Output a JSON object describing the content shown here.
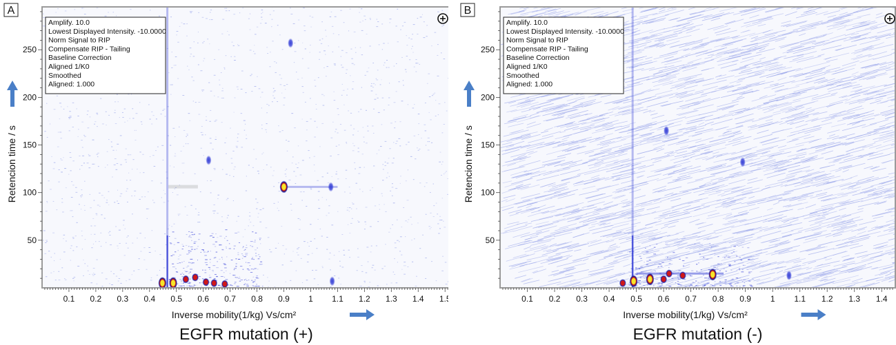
{
  "chart_data": [
    {
      "type": "heatmap",
      "panel_letter": "A",
      "info_lines": [
        "Amplify. 10.0",
        "Lowest Displayed Intensity. -10.0000",
        "Norm Signal to RIP",
        "Compensate RIP - Tailing",
        "Baseline Correction",
        "Aligned 1/K0",
        "Smoothed",
        "Aligned: 1.000"
      ],
      "xlabel": "Inverse mobility(1/kg) Vs/cm²",
      "ylabel": "Retencion time / s",
      "caption": "EGFR mutation (+)",
      "xlim": [
        0,
        1.52
      ],
      "ylim": [
        0,
        295
      ],
      "x_ticks": [
        "0.1",
        "0.2",
        "0.3",
        "0.4",
        "0.5",
        "0.6",
        "0.7",
        "0.8",
        "0.9",
        "1",
        "1.1",
        "1.2",
        "1.3",
        "1.4",
        "1.5"
      ],
      "y_ticks": [
        "50",
        "100",
        "150",
        "200",
        "250"
      ],
      "colors": {
        "background": "#f7f8fd",
        "noise": "#9aa6ea",
        "low": "#3a44d8",
        "mid": "#d01818",
        "high": "#f6e62a"
      },
      "peaks": [
        {
          "x": 0.448,
          "y": 5,
          "intensity": "high"
        },
        {
          "x": 0.488,
          "y": 5,
          "intensity": "high"
        },
        {
          "x": 0.535,
          "y": 9,
          "intensity": "mid"
        },
        {
          "x": 0.57,
          "y": 11,
          "intensity": "mid"
        },
        {
          "x": 0.61,
          "y": 6,
          "intensity": "mid"
        },
        {
          "x": 0.64,
          "y": 5,
          "intensity": "mid"
        },
        {
          "x": 0.68,
          "y": 4,
          "intensity": "mid"
        },
        {
          "x": 0.9,
          "y": 106,
          "intensity": "high"
        },
        {
          "x": 0.925,
          "y": 257,
          "intensity": "low"
        },
        {
          "x": 1.075,
          "y": 106,
          "intensity": "low"
        },
        {
          "x": 1.08,
          "y": 7,
          "intensity": "low"
        },
        {
          "x": 0.62,
          "y": 134,
          "intensity": "low"
        }
      ]
    },
    {
      "type": "heatmap",
      "panel_letter": "B",
      "info_lines": [
        "Amplify. 10.0",
        "Lowest Displayed Intensity. -10.0000",
        "Norm Signal to RIP",
        "Compensate RIP - Tailing",
        "Baseline Correction",
        "Aligned 1/K0",
        "Smoothed",
        "Aligned: 1.000"
      ],
      "xlabel": "Inverse mobility(1/kg) Vs/cm²",
      "ylabel": "Retencion time / s",
      "caption": "EGFR mutation (-)",
      "xlim": [
        0,
        1.45
      ],
      "ylim": [
        0,
        295
      ],
      "x_ticks": [
        "0.1",
        "0.2",
        "0.3",
        "0.4",
        "0.5",
        "0.6",
        "0.7",
        "0.8",
        "0.9",
        "1",
        "1.1",
        "1.2",
        "1.3",
        "1.4"
      ],
      "y_ticks": [
        "50",
        "100",
        "150",
        "200",
        "250"
      ],
      "colors": {
        "background": "#f7f8fd",
        "noise": "#9aa6ea",
        "low": "#3a44d8",
        "mid": "#d01818",
        "high": "#f6e62a"
      },
      "peaks": [
        {
          "x": 0.45,
          "y": 5,
          "intensity": "mid"
        },
        {
          "x": 0.49,
          "y": 7,
          "intensity": "high"
        },
        {
          "x": 0.55,
          "y": 9,
          "intensity": "high"
        },
        {
          "x": 0.6,
          "y": 9,
          "intensity": "mid"
        },
        {
          "x": 0.62,
          "y": 15,
          "intensity": "mid"
        },
        {
          "x": 0.67,
          "y": 13,
          "intensity": "mid"
        },
        {
          "x": 0.78,
          "y": 14,
          "intensity": "high"
        },
        {
          "x": 0.89,
          "y": 132,
          "intensity": "low"
        },
        {
          "x": 0.61,
          "y": 165,
          "intensity": "low"
        },
        {
          "x": 1.06,
          "y": 13,
          "intensity": "low"
        }
      ]
    }
  ]
}
